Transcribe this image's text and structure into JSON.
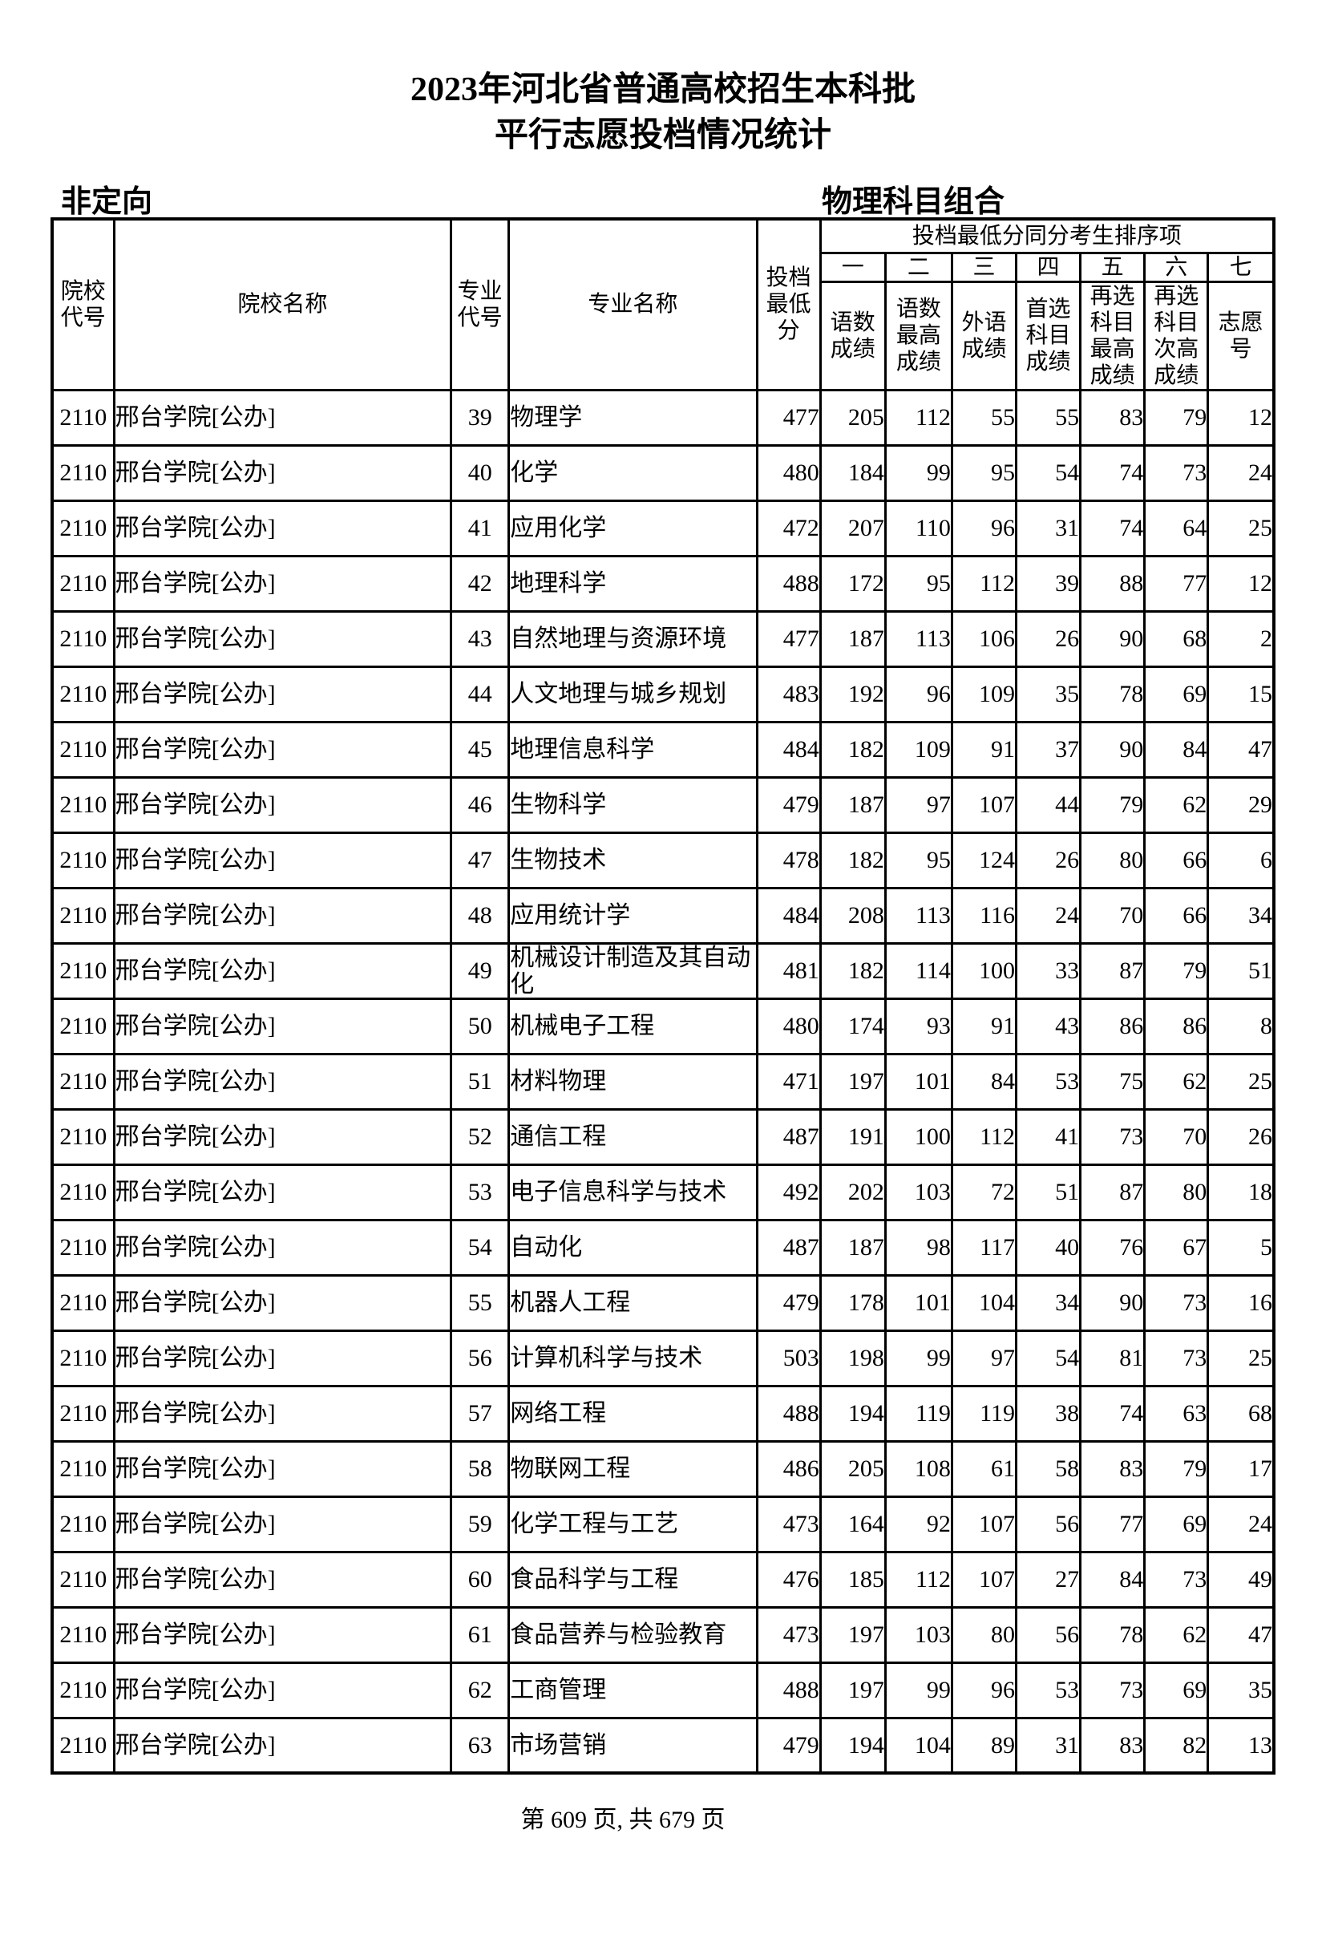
{
  "page": {
    "title_line1": "2023年河北省普通高校招生本科批",
    "title_line2": "平行志愿投档情况统计",
    "left_label": "非定向",
    "right_label": "物理科目组合",
    "footer": "第 609 页, 共 679 页"
  },
  "table": {
    "headers": {
      "college_code": "院校\n代号",
      "college_name": "院校名称",
      "major_code": "专业\n代号",
      "major_name": "专业名称",
      "min_score": "投档\n最低\n分",
      "tiebreak_group": "投档最低分同分考生排序项",
      "ordinals": [
        "一",
        "二",
        "三",
        "四",
        "五",
        "六",
        "七"
      ],
      "tiebreak_items": [
        "语数\n成绩",
        "语数\n最高\n成绩",
        "外语\n成绩",
        "首选\n科目\n成绩",
        "再选\n科目\n最高\n成绩",
        "再选\n科目\n次高\n成绩",
        "志愿\n号"
      ]
    },
    "rows": [
      [
        "2110",
        "邢台学院[公办]",
        "39",
        "物理学",
        "477",
        "205",
        "112",
        "55",
        "55",
        "83",
        "79",
        "12"
      ],
      [
        "2110",
        "邢台学院[公办]",
        "40",
        "化学",
        "480",
        "184",
        "99",
        "95",
        "54",
        "74",
        "73",
        "24"
      ],
      [
        "2110",
        "邢台学院[公办]",
        "41",
        "应用化学",
        "472",
        "207",
        "110",
        "96",
        "31",
        "74",
        "64",
        "25"
      ],
      [
        "2110",
        "邢台学院[公办]",
        "42",
        "地理科学",
        "488",
        "172",
        "95",
        "112",
        "39",
        "88",
        "77",
        "12"
      ],
      [
        "2110",
        "邢台学院[公办]",
        "43",
        "自然地理与资源环境",
        "477",
        "187",
        "113",
        "106",
        "26",
        "90",
        "68",
        "2"
      ],
      [
        "2110",
        "邢台学院[公办]",
        "44",
        "人文地理与城乡规划",
        "483",
        "192",
        "96",
        "109",
        "35",
        "78",
        "69",
        "15"
      ],
      [
        "2110",
        "邢台学院[公办]",
        "45",
        "地理信息科学",
        "484",
        "182",
        "109",
        "91",
        "37",
        "90",
        "84",
        "47"
      ],
      [
        "2110",
        "邢台学院[公办]",
        "46",
        "生物科学",
        "479",
        "187",
        "97",
        "107",
        "44",
        "79",
        "62",
        "29"
      ],
      [
        "2110",
        "邢台学院[公办]",
        "47",
        "生物技术",
        "478",
        "182",
        "95",
        "124",
        "26",
        "80",
        "66",
        "6"
      ],
      [
        "2110",
        "邢台学院[公办]",
        "48",
        "应用统计学",
        "484",
        "208",
        "113",
        "116",
        "24",
        "70",
        "66",
        "34"
      ],
      [
        "2110",
        "邢台学院[公办]",
        "49",
        "机械设计制造及其自动化",
        "481",
        "182",
        "114",
        "100",
        "33",
        "87",
        "79",
        "51"
      ],
      [
        "2110",
        "邢台学院[公办]",
        "50",
        "机械电子工程",
        "480",
        "174",
        "93",
        "91",
        "43",
        "86",
        "86",
        "8"
      ],
      [
        "2110",
        "邢台学院[公办]",
        "51",
        "材料物理",
        "471",
        "197",
        "101",
        "84",
        "53",
        "75",
        "62",
        "25"
      ],
      [
        "2110",
        "邢台学院[公办]",
        "52",
        "通信工程",
        "487",
        "191",
        "100",
        "112",
        "41",
        "73",
        "70",
        "26"
      ],
      [
        "2110",
        "邢台学院[公办]",
        "53",
        "电子信息科学与技术",
        "492",
        "202",
        "103",
        "72",
        "51",
        "87",
        "80",
        "18"
      ],
      [
        "2110",
        "邢台学院[公办]",
        "54",
        "自动化",
        "487",
        "187",
        "98",
        "117",
        "40",
        "76",
        "67",
        "5"
      ],
      [
        "2110",
        "邢台学院[公办]",
        "55",
        "机器人工程",
        "479",
        "178",
        "101",
        "104",
        "34",
        "90",
        "73",
        "16"
      ],
      [
        "2110",
        "邢台学院[公办]",
        "56",
        "计算机科学与技术",
        "503",
        "198",
        "99",
        "97",
        "54",
        "81",
        "73",
        "25"
      ],
      [
        "2110",
        "邢台学院[公办]",
        "57",
        "网络工程",
        "488",
        "194",
        "119",
        "119",
        "38",
        "74",
        "63",
        "68"
      ],
      [
        "2110",
        "邢台学院[公办]",
        "58",
        "物联网工程",
        "486",
        "205",
        "108",
        "61",
        "58",
        "83",
        "79",
        "17"
      ],
      [
        "2110",
        "邢台学院[公办]",
        "59",
        "化学工程与工艺",
        "473",
        "164",
        "92",
        "107",
        "56",
        "77",
        "69",
        "24"
      ],
      [
        "2110",
        "邢台学院[公办]",
        "60",
        "食品科学与工程",
        "476",
        "185",
        "112",
        "107",
        "27",
        "84",
        "73",
        "49"
      ],
      [
        "2110",
        "邢台学院[公办]",
        "61",
        "食品营养与检验教育",
        "473",
        "197",
        "103",
        "80",
        "56",
        "78",
        "62",
        "47"
      ],
      [
        "2110",
        "邢台学院[公办]",
        "62",
        "工商管理",
        "488",
        "197",
        "99",
        "96",
        "53",
        "73",
        "69",
        "35"
      ],
      [
        "2110",
        "邢台学院[公办]",
        "63",
        "市场营销",
        "479",
        "194",
        "104",
        "89",
        "31",
        "83",
        "82",
        "13"
      ]
    ]
  }
}
